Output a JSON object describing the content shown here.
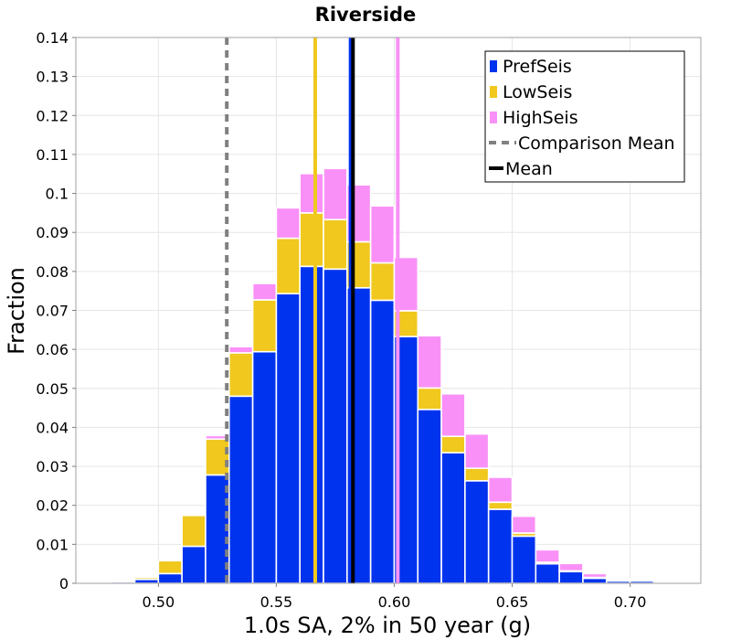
{
  "chart_data": {
    "type": "bar",
    "title": "Riverside",
    "xlabel": "1.0s SA, 2% in 50 year (g)",
    "ylabel": "Fraction",
    "xlim": [
      0.465,
      0.73
    ],
    "ylim": [
      0,
      0.14
    ],
    "xticks": [
      0.5,
      0.55,
      0.6,
      0.65,
      0.7
    ],
    "xtick_labels": [
      "0.50",
      "0.55",
      "0.60",
      "0.65",
      "0.70"
    ],
    "yticks": [
      0,
      0.01,
      0.02,
      0.03,
      0.04,
      0.05,
      0.06,
      0.07,
      0.08,
      0.09,
      0.1,
      0.11,
      0.12,
      0.13,
      0.14
    ],
    "ytick_labels": [
      "0",
      "0.01",
      "0.02",
      "0.03",
      "0.04",
      "0.05",
      "0.06",
      "0.07",
      "0.08",
      "0.09",
      "0.1",
      "0.11",
      "0.12",
      "0.13",
      "0.14"
    ],
    "grid": true,
    "bin_width": 0.01,
    "bin_centers": [
      0.475,
      0.485,
      0.495,
      0.505,
      0.515,
      0.525,
      0.535,
      0.545,
      0.555,
      0.565,
      0.575,
      0.585,
      0.595,
      0.605,
      0.615,
      0.625,
      0.635,
      0.645,
      0.655,
      0.665,
      0.675,
      0.685,
      0.695,
      0.705,
      0.715,
      0.725
    ],
    "series": [
      {
        "name": "PrefSeis",
        "color": "#0033ee",
        "values": [
          0.0002,
          0.0004,
          0.001,
          0.0025,
          0.0095,
          0.0278,
          0.048,
          0.0594,
          0.0743,
          0.0813,
          0.0806,
          0.0758,
          0.0726,
          0.0633,
          0.0446,
          0.0335,
          0.0263,
          0.019,
          0.0121,
          0.005,
          0.003,
          0.0013,
          0.0006,
          0.0006,
          0.0002,
          0.0001
        ]
      },
      {
        "name": "LowSeis",
        "color": "#f0c81e",
        "values": [
          0.0001,
          0.0003,
          0.0005,
          0.0033,
          0.0079,
          0.0092,
          0.0111,
          0.0133,
          0.0142,
          0.0137,
          0.0127,
          0.0118,
          0.0096,
          0.0066,
          0.0055,
          0.0042,
          0.0032,
          0.0018,
          0.0008,
          0.0004,
          0.0002,
          0.0002,
          0.0001,
          0.0001,
          0.0,
          0.0
        ]
      },
      {
        "name": "HighSeis",
        "color": "#f990f7",
        "values": [
          0.0,
          0.0,
          0.0,
          0.0,
          0.0,
          0.0009,
          0.0016,
          0.0042,
          0.0078,
          0.0101,
          0.0131,
          0.0146,
          0.0146,
          0.0137,
          0.0134,
          0.0109,
          0.0088,
          0.0064,
          0.0043,
          0.0032,
          0.0019,
          0.001,
          0.0004,
          0.0003,
          0.0001,
          0.0001
        ]
      }
    ],
    "vertical_lines": [
      {
        "name": "LowSeis mean",
        "x": 0.5665,
        "color": "#f0c81e",
        "style": "solid"
      },
      {
        "name": "HighSeis mean",
        "x": 0.6015,
        "color": "#f990f7",
        "style": "solid"
      },
      {
        "name": "PrefSeis mean",
        "x": 0.5815,
        "color": "#0033ee",
        "style": "solid"
      },
      {
        "name": "Comparison Mean",
        "x": 0.529,
        "color": "#808080",
        "style": "dashed"
      },
      {
        "name": "Mean",
        "x": 0.5825,
        "color": "#000000",
        "style": "solid"
      }
    ],
    "legend": {
      "position": "top-right",
      "entries": [
        {
          "label": "PrefSeis",
          "color": "#0033ee",
          "kind": "square"
        },
        {
          "label": "LowSeis",
          "color": "#f0c81e",
          "kind": "square"
        },
        {
          "label": "HighSeis",
          "color": "#f990f7",
          "kind": "square"
        },
        {
          "label": "Comparison Mean",
          "color": "#808080",
          "kind": "dashed-line"
        },
        {
          "label": "Mean",
          "color": "#000000",
          "kind": "line"
        }
      ]
    }
  }
}
